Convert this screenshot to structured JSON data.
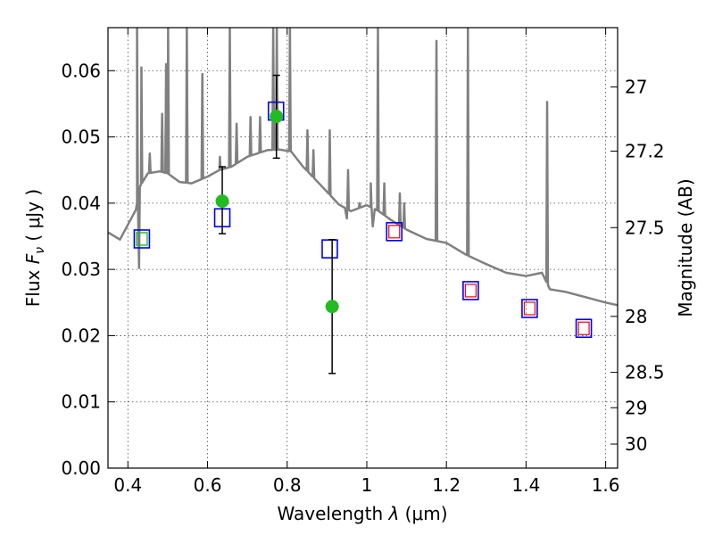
{
  "chart_data": {
    "type": "scatter",
    "title": "",
    "xlabel_text": "Wavelength  ",
    "xlabel_symbol": "λ",
    "xlabel_unit": " (μm)",
    "ylabel_text": "Flux  ",
    "ylabel_symbol_main": "F",
    "ylabel_symbol_sub": "ν",
    "ylabel_unit": " ( μJy )",
    "y2label": "Magnitude (AB)",
    "xlim": [
      0.35,
      1.63
    ],
    "ylim": [
      0.0,
      0.0665
    ],
    "grid": true,
    "x_ticks": [
      0.4,
      0.6,
      0.8,
      1.0,
      1.2,
      1.4,
      1.6
    ],
    "x_tick_labels": [
      "0.4",
      "0.6",
      "0.8",
      "1",
      "1.2",
      "1.4",
      "1.6"
    ],
    "y_ticks": [
      0.0,
      0.01,
      0.02,
      0.03,
      0.04,
      0.05,
      0.06
    ],
    "y_tick_labels": [
      "0.00",
      "0.01",
      "0.02",
      "0.03",
      "0.04",
      "0.05",
      "0.06"
    ],
    "y2_ticks": [
      {
        "label": "27",
        "mag": 27.0
      },
      {
        "label": "27.2",
        "mag": 27.2
      },
      {
        "label": "27.5",
        "mag": 27.5
      },
      {
        "label": "28",
        "mag": 28.0
      },
      {
        "label": "28.5",
        "mag": 28.5
      },
      {
        "label": "29",
        "mag": 29.0
      },
      {
        "label": "30",
        "mag": 30.0
      }
    ],
    "colors": {
      "spectrum": "#808080",
      "model_box": "#0000ff",
      "observed_point": "#22bb22",
      "inner_box_red": "#ff0000",
      "inner_box_green": "#22bb22",
      "errorbar": "#000000"
    },
    "spectrum": {
      "continuum": [
        [
          0.35,
          0.0356
        ],
        [
          0.38,
          0.0345
        ],
        [
          0.42,
          0.039
        ],
        [
          0.43,
          0.0425
        ],
        [
          0.45,
          0.0445
        ],
        [
          0.48,
          0.0448
        ],
        [
          0.5,
          0.0445
        ],
        [
          0.53,
          0.0432
        ],
        [
          0.56,
          0.043
        ],
        [
          0.6,
          0.044
        ],
        [
          0.63,
          0.045
        ],
        [
          0.66,
          0.0455
        ],
        [
          0.7,
          0.047
        ],
        [
          0.75,
          0.048
        ],
        [
          0.78,
          0.0481
        ],
        [
          0.81,
          0.0478
        ],
        [
          0.84,
          0.0455
        ],
        [
          0.88,
          0.043
        ],
        [
          0.93,
          0.0398
        ],
        [
          0.96,
          0.0388
        ],
        [
          1.0,
          0.0397
        ],
        [
          1.03,
          0.0388
        ],
        [
          1.06,
          0.0375
        ],
        [
          1.1,
          0.036
        ],
        [
          1.15,
          0.0346
        ],
        [
          1.2,
          0.034
        ],
        [
          1.25,
          0.0322
        ],
        [
          1.3,
          0.0308
        ],
        [
          1.35,
          0.0295
        ],
        [
          1.4,
          0.029
        ],
        [
          1.44,
          0.0295
        ],
        [
          1.46,
          0.027
        ],
        [
          1.5,
          0.0266
        ],
        [
          1.55,
          0.0258
        ],
        [
          1.6,
          0.025
        ],
        [
          1.63,
          0.0246
        ]
      ],
      "dips": [
        {
          "x": 0.428,
          "y": 0.0302
        },
        {
          "x": 0.95,
          "y": 0.0377
        },
        {
          "x": 1.015,
          "y": 0.0365
        }
      ],
      "emission_lines": [
        {
          "x": 0.423,
          "peak": 0.0665
        },
        {
          "x": 0.434,
          "peak": 0.0605
        },
        {
          "x": 0.455,
          "peak": 0.0475
        },
        {
          "x": 0.486,
          "peak": 0.0535
        },
        {
          "x": 0.496,
          "peak": 0.061
        },
        {
          "x": 0.501,
          "peak": 0.0665
        },
        {
          "x": 0.548,
          "peak": 0.0665
        },
        {
          "x": 0.587,
          "peak": 0.0595
        },
        {
          "x": 0.631,
          "peak": 0.047
        },
        {
          "x": 0.656,
          "peak": 0.0665
        },
        {
          "x": 0.673,
          "peak": 0.052
        },
        {
          "x": 0.708,
          "peak": 0.053
        },
        {
          "x": 0.732,
          "peak": 0.053
        },
        {
          "x": 0.765,
          "peak": 0.0665
        },
        {
          "x": 0.774,
          "peak": 0.0665
        },
        {
          "x": 0.807,
          "peak": 0.0665
        },
        {
          "x": 0.851,
          "peak": 0.051
        },
        {
          "x": 0.866,
          "peak": 0.048
        },
        {
          "x": 0.907,
          "peak": 0.051
        },
        {
          "x": 0.953,
          "peak": 0.045
        },
        {
          "x": 0.982,
          "peak": 0.04
        },
        {
          "x": 1.01,
          "peak": 0.043
        },
        {
          "x": 1.028,
          "peak": 0.0665
        },
        {
          "x": 1.044,
          "peak": 0.043
        },
        {
          "x": 1.083,
          "peak": 0.0415
        },
        {
          "x": 1.094,
          "peak": 0.04
        },
        {
          "x": 1.175,
          "peak": 0.0645
        },
        {
          "x": 1.254,
          "peak": 0.0665
        },
        {
          "x": 1.453,
          "peak": 0.0553
        }
      ]
    },
    "model_boxes": [
      {
        "x": 0.435,
        "y": 0.0346,
        "inner": "green"
      },
      {
        "x": 0.637,
        "y": 0.0378,
        "inner": "none"
      },
      {
        "x": 0.772,
        "y": 0.0539,
        "inner": "none"
      },
      {
        "x": 0.907,
        "y": 0.0331,
        "inner": "none"
      },
      {
        "x": 1.069,
        "y": 0.0357,
        "inner": "red"
      },
      {
        "x": 1.261,
        "y": 0.0268,
        "inner": "red"
      },
      {
        "x": 1.409,
        "y": 0.0241,
        "inner": "red"
      },
      {
        "x": 1.545,
        "y": 0.0211,
        "inner": "red"
      }
    ],
    "observed_points": [
      {
        "x": 0.637,
        "y": 0.0403,
        "ylow": 0.0354,
        "yhigh": 0.0455
      },
      {
        "x": 0.773,
        "y": 0.0531,
        "ylow": 0.0468,
        "yhigh": 0.0593
      },
      {
        "x": 0.913,
        "y": 0.0244,
        "ylow": 0.0143,
        "yhigh": 0.0345
      }
    ]
  }
}
